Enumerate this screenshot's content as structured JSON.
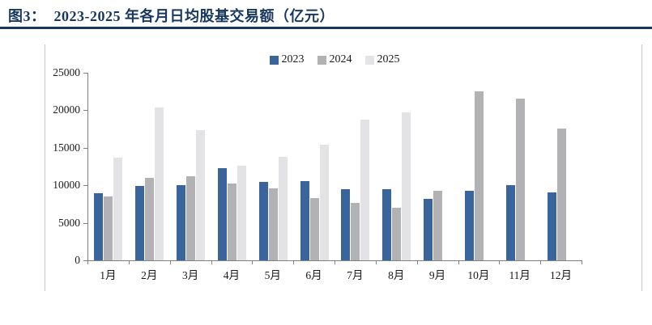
{
  "figure": {
    "title": "图3：  2023-2025 年各月日均股基交易额（亿元）",
    "title_color": "#17375e",
    "rule_color": "#17375e"
  },
  "chart_data": {
    "type": "bar",
    "title": "2023-2025 年各月日均股基交易额（亿元）",
    "xlabel": "",
    "ylabel": "",
    "categories": [
      "1月",
      "2月",
      "3月",
      "4月",
      "5月",
      "6月",
      "7月",
      "8月",
      "9月",
      "10月",
      "11月",
      "12月"
    ],
    "series": [
      {
        "name": "2023",
        "color": "#3a649c",
        "values": [
          8900,
          9900,
          10000,
          12300,
          10400,
          10600,
          9500,
          9500,
          8200,
          9300,
          10000,
          9000
        ]
      },
      {
        "name": "2024",
        "color": "#b2b2b4",
        "values": [
          8500,
          11000,
          11200,
          10200,
          9600,
          8300,
          7600,
          7000,
          9300,
          22500,
          21500,
          17600
        ]
      },
      {
        "name": "2025",
        "color": "#e3e3e5",
        "values": [
          13700,
          20400,
          17300,
          12600,
          13800,
          15400,
          18800,
          19700,
          null,
          null,
          null,
          null
        ]
      }
    ],
    "ylim": [
      0,
      25000
    ],
    "yticks": [
      0,
      5000,
      10000,
      15000,
      20000,
      25000
    ],
    "legend_position": "top-center",
    "grid": false,
    "axis_color": "#808080"
  }
}
